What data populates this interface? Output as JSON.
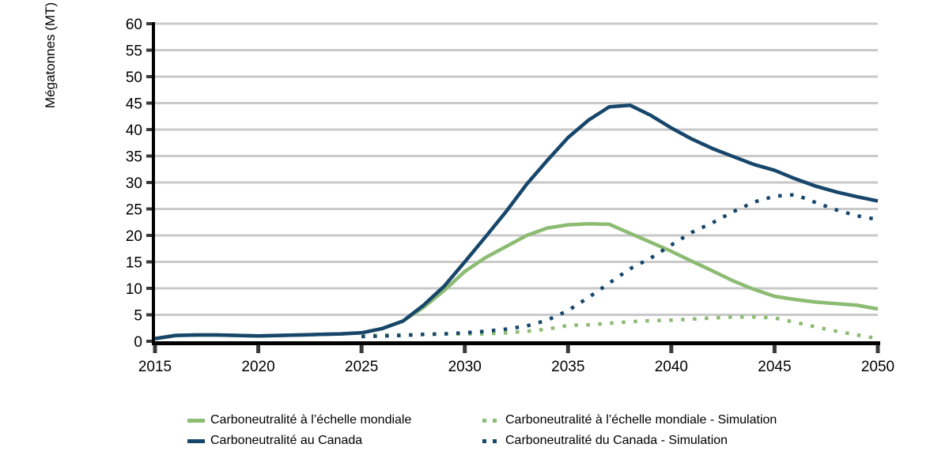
{
  "chart_data": {
    "type": "line",
    "title": "",
    "xlabel": "",
    "ylabel": "Mégatonnes (MT)",
    "xlim": [
      2015,
      2050
    ],
    "ylim": [
      0,
      60
    ],
    "ytick_step": 5,
    "yticks": [
      0,
      5,
      10,
      15,
      20,
      25,
      30,
      35,
      40,
      45,
      50,
      55,
      60
    ],
    "xticks": [
      2015,
      2020,
      2025,
      2030,
      2035,
      2040,
      2045,
      2050
    ],
    "grid": "horizontal",
    "legend_position": "bottom",
    "colors": {
      "grid": "#c9c9c9",
      "axis": "#000000",
      "tick": "#3a3a3a",
      "text": "#000000"
    },
    "x": [
      2015,
      2016,
      2017,
      2018,
      2019,
      2020,
      2021,
      2022,
      2023,
      2024,
      2025,
      2026,
      2027,
      2028,
      2029,
      2030,
      2031,
      2032,
      2033,
      2034,
      2035,
      2036,
      2037,
      2038,
      2039,
      2040,
      2041,
      2042,
      2043,
      2044,
      2045,
      2046,
      2047,
      2048,
      2049,
      2050
    ],
    "series": [
      {
        "name": "Carboneutralité à l’échelle mondiale",
        "color": "#8cbb72",
        "style": "solid",
        "values": [
          0.5,
          1.1,
          1.2,
          1.2,
          1.1,
          1.0,
          1.1,
          1.2,
          1.3,
          1.4,
          1.6,
          2.4,
          3.8,
          6.4,
          9.6,
          13.2,
          15.8,
          17.9,
          20.0,
          21.4,
          22.0,
          22.2,
          22.1,
          20.4,
          18.7,
          17.0,
          15.1,
          13.3,
          11.4,
          9.8,
          8.5,
          7.9,
          7.4,
          7.1,
          6.8,
          6.1
        ]
      },
      {
        "name": "Carboneutralité au Canada",
        "color": "#17466b",
        "style": "solid",
        "values": [
          0.5,
          1.1,
          1.2,
          1.2,
          1.1,
          1.0,
          1.1,
          1.2,
          1.3,
          1.4,
          1.6,
          2.4,
          3.8,
          6.8,
          10.4,
          15.0,
          19.7,
          24.5,
          29.7,
          34.2,
          38.5,
          41.8,
          44.3,
          44.6,
          42.7,
          40.3,
          38.2,
          36.4,
          34.9,
          33.4,
          32.3,
          30.7,
          29.3,
          28.2,
          27.3,
          26.5
        ]
      },
      {
        "name": "Carboneutralité à l’échelle mondiale - Simulation",
        "color": "#8cbb72",
        "style": "dotted",
        "values": [
          null,
          null,
          null,
          null,
          null,
          null,
          null,
          null,
          null,
          null,
          1.0,
          1.2,
          1.2,
          1.3,
          1.4,
          1.4,
          1.4,
          1.6,
          1.9,
          2.3,
          3.0,
          3.1,
          3.4,
          3.7,
          3.9,
          4.0,
          4.2,
          4.4,
          4.6,
          4.6,
          4.4,
          3.6,
          2.7,
          1.9,
          1.2,
          0.5
        ]
      },
      {
        "name": "Carboneutralité du Canada - Simulation",
        "color": "#17466b",
        "style": "dotted",
        "values": [
          null,
          null,
          null,
          null,
          null,
          null,
          null,
          null,
          null,
          null,
          0.9,
          1.0,
          1.1,
          1.3,
          1.4,
          1.6,
          1.9,
          2.3,
          2.9,
          4.0,
          5.8,
          8.3,
          11.0,
          13.7,
          15.7,
          18.2,
          20.6,
          22.4,
          24.5,
          26.3,
          27.4,
          27.7,
          26.2,
          24.8,
          23.7,
          23.0
        ]
      }
    ],
    "legend": [
      {
        "label": "Carboneutralité à l’échelle mondiale",
        "color": "#8cbb72",
        "style": "solid"
      },
      {
        "label": "Carboneutralité à l’échelle mondiale - Simulation",
        "color": "#8cbb72",
        "style": "dotted"
      },
      {
        "label": "Carboneutralité au Canada",
        "color": "#17466b",
        "style": "solid"
      },
      {
        "label": "Carboneutralité du Canada - Simulation",
        "color": "#17466b",
        "style": "dotted"
      }
    ]
  }
}
